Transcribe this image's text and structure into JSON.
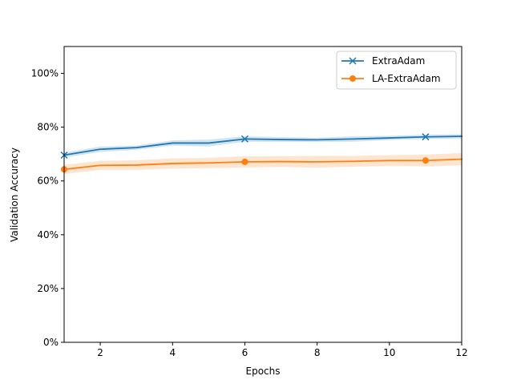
{
  "chart_data": {
    "type": "line",
    "xlabel": "Epochs",
    "ylabel": "Validation Accuracy",
    "xlim": [
      1,
      12
    ],
    "ylim": [
      0,
      110
    ],
    "x_ticks": [
      2,
      4,
      6,
      8,
      10,
      12
    ],
    "y_ticks": [
      0,
      20,
      40,
      60,
      80,
      100
    ],
    "y_tick_suffix": "%",
    "grid": false,
    "legend_position": "top-right",
    "x": [
      1,
      2,
      3,
      4,
      5,
      6,
      7,
      8,
      9,
      10,
      11,
      12
    ],
    "series": [
      {
        "name": "ExtraAdam",
        "color": "#1f77b4",
        "marker": "x",
        "marker_every": 5,
        "values": [
          69.6,
          71.8,
          72.4,
          74.1,
          74.1,
          75.6,
          75.4,
          75.3,
          75.6,
          76.0,
          76.4,
          76.6
        ],
        "band_lower": [
          68.7,
          70.8,
          71.6,
          73.1,
          72.8,
          74.6,
          74.5,
          74.5,
          74.6,
          75.2,
          75.6,
          75.8
        ],
        "band_upper": [
          70.5,
          72.8,
          73.2,
          75.1,
          75.4,
          76.6,
          76.3,
          76.1,
          76.6,
          76.8,
          77.2,
          77.4
        ]
      },
      {
        "name": "LA-ExtraAdam",
        "color": "#ff7f0e",
        "marker": "o",
        "marker_every": 5,
        "values": [
          64.3,
          65.8,
          65.9,
          66.5,
          66.7,
          67.1,
          67.2,
          67.1,
          67.3,
          67.6,
          67.6,
          68.1
        ],
        "band_lower": [
          62.6,
          64.1,
          64.1,
          64.6,
          64.8,
          65.0,
          65.2,
          64.9,
          65.3,
          65.6,
          65.4,
          65.8
        ],
        "band_upper": [
          66.0,
          67.5,
          67.7,
          68.4,
          68.6,
          69.2,
          69.2,
          69.3,
          69.3,
          69.6,
          69.8,
          70.4
        ]
      }
    ]
  }
}
